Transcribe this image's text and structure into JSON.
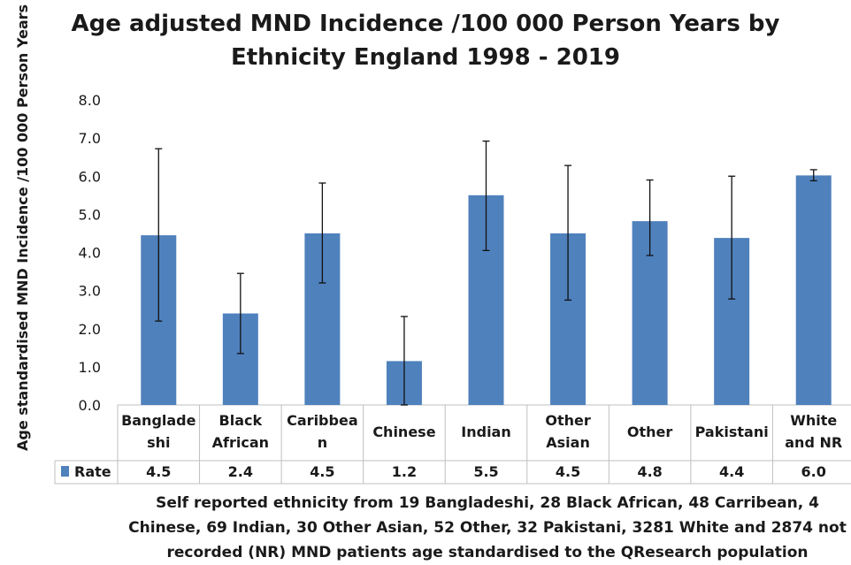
{
  "chart_data": {
    "type": "bar",
    "title": "Age adjusted MND Incidence /100 000 Person Years by Ethnicity England 1998 - 2019",
    "ylabel": "Age standardised MND Incidence /100 000 Person Years",
    "xlabel": "Self reported ethnicity from 19 Bangladeshi, 28 Black African, 48 Carribean, 4 Chinese, 69 Indian, 30 Other Asian, 52 Other, 32 Pakistani, 3281 White and 2874 not recorded (NR) MND patients age standardised to the QResearch population",
    "ylim": [
      0,
      8
    ],
    "yticks": [
      "0.0",
      "1.0",
      "2.0",
      "3.0",
      "4.0",
      "5.0",
      "6.0",
      "7.0",
      "8.0"
    ],
    "categories": [
      [
        "Banglade",
        "shi"
      ],
      [
        "Black",
        "African"
      ],
      [
        "Caribbea",
        "n"
      ],
      [
        "Chinese"
      ],
      [
        "Indian"
      ],
      [
        "Other",
        "Asian"
      ],
      [
        "Other"
      ],
      [
        "Pakistani"
      ],
      [
        "White",
        "and NR"
      ]
    ],
    "series": [
      {
        "name": "Rate",
        "color": "#4f81bd",
        "values": [
          4.45,
          2.4,
          4.5,
          1.15,
          5.5,
          4.5,
          4.82,
          4.38,
          6.02
        ],
        "labels": [
          "4.5",
          "2.4",
          "4.5",
          "1.2",
          "5.5",
          "4.5",
          "4.8",
          "4.4",
          "6.0"
        ],
        "error_low": [
          2.2,
          1.35,
          3.2,
          0.0,
          4.05,
          2.75,
          3.92,
          2.78,
          5.88
        ],
        "error_high": [
          6.72,
          3.45,
          5.82,
          2.32,
          6.92,
          6.28,
          5.9,
          6.0,
          6.17
        ]
      }
    ],
    "data_table": true,
    "grid": false,
    "legend": "data-table"
  }
}
